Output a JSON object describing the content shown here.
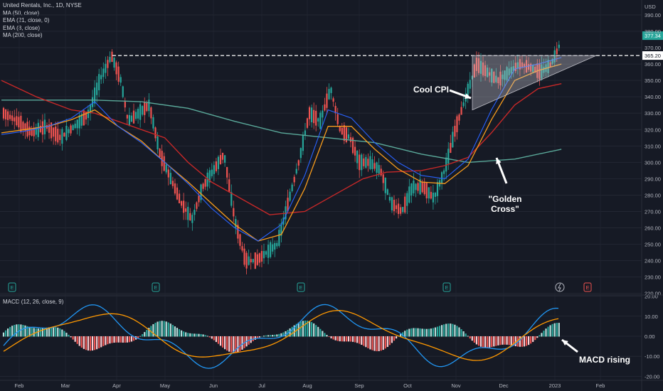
{
  "legend": {
    "title": "United Rentals, Inc., 1D, NYSE",
    "lines": [
      "MA (50, close)",
      "EMA (21, close, 0)",
      "EMA (8, close)",
      "MA (200, close)"
    ]
  },
  "currency": "USD",
  "price_axis_ticks": [
    "390.00",
    "380.00",
    "370.00",
    "360.00",
    "350.00",
    "340.00",
    "330.00",
    "320.00",
    "310.00",
    "300.00",
    "290.00",
    "280.00",
    "270.00",
    "260.00",
    "250.00",
    "240.00",
    "230.00",
    "220.00"
  ],
  "macd_axis_ticks": [
    "20.00",
    "10.00",
    "0.00",
    "-10.00",
    "-20.00"
  ],
  "time_axis": [
    "Feb",
    "Mar",
    "Apr",
    "May",
    "Jun",
    "Jul",
    "Aug",
    "Sep",
    "Oct",
    "Nov",
    "Dec",
    "2023",
    "Feb"
  ],
  "price_labels": {
    "last": "377.34",
    "resistance": "365.20"
  },
  "annotations": {
    "cool_cpi": "Cool CPI",
    "golden_cross": "\"Golden\nCross\"",
    "macd_rising": "MACD rising"
  },
  "earnings_marker": "E",
  "macd_title": "MACD (12, 26, close, 9)",
  "colors": {
    "up": "#26a69a",
    "down": "#ef5350",
    "ma50": "#2962ff",
    "ema21": "#f89c1c",
    "ema8": "#f89c1c",
    "ma200": "#5aa99a",
    "ma200_red": "#c62828",
    "macd": "#2196f3",
    "signal": "#ff9800",
    "bg": "#161a25"
  },
  "chart_data": {
    "type": "line",
    "title": "United Rentals, Inc., 1D, NYSE",
    "y_axis": {
      "unit": "USD",
      "range": [
        220,
        390
      ]
    },
    "series": [
      {
        "name": "MA (50, close)",
        "values": [
          [
            0,
            315
          ],
          [
            20,
            317
          ],
          [
            40,
            320
          ],
          [
            60,
            325
          ],
          [
            80,
            335
          ],
          [
            100,
            320
          ],
          [
            120,
            310
          ],
          [
            140,
            298
          ],
          [
            160,
            285
          ],
          [
            180,
            270
          ],
          [
            200,
            258
          ],
          [
            220,
            250
          ],
          [
            240,
            260
          ],
          [
            260,
            290
          ],
          [
            280,
            330
          ],
          [
            300,
            325
          ],
          [
            320,
            310
          ],
          [
            340,
            298
          ],
          [
            360,
            290
          ],
          [
            380,
            288
          ],
          [
            400,
            300
          ],
          [
            420,
            330
          ],
          [
            440,
            355
          ],
          [
            460,
            358
          ],
          [
            480,
            362
          ]
        ]
      },
      {
        "name": "EMA (21, close, 0)",
        "values": [
          [
            0,
            318
          ],
          [
            20,
            320
          ],
          [
            40,
            322
          ],
          [
            60,
            326
          ],
          [
            80,
            332
          ],
          [
            100,
            322
          ],
          [
            120,
            313
          ],
          [
            140,
            300
          ],
          [
            160,
            288
          ],
          [
            180,
            275
          ],
          [
            200,
            262
          ],
          [
            220,
            252
          ],
          [
            240,
            256
          ],
          [
            260,
            284
          ],
          [
            280,
            322
          ],
          [
            300,
            322
          ],
          [
            320,
            308
          ],
          [
            340,
            296
          ],
          [
            360,
            288
          ],
          [
            380,
            287
          ],
          [
            400,
            298
          ],
          [
            420,
            326
          ],
          [
            440,
            350
          ],
          [
            460,
            356
          ],
          [
            480,
            360
          ]
        ]
      },
      {
        "name": "MA (200, close)",
        "values": [
          [
            0,
            338
          ],
          [
            40,
            338
          ],
          [
            80,
            338
          ],
          [
            120,
            337
          ],
          [
            160,
            333
          ],
          [
            200,
            325
          ],
          [
            240,
            318
          ],
          [
            280,
            315
          ],
          [
            320,
            312
          ],
          [
            360,
            305
          ],
          [
            400,
            300
          ],
          [
            440,
            302
          ],
          [
            480,
            308
          ]
        ]
      }
    ],
    "macd": {
      "title": "MACD (12, 26, close, 9)",
      "y_axis_range": [
        -20,
        20
      ]
    },
    "resistance_level": 365.2,
    "last_price": 377.34
  }
}
